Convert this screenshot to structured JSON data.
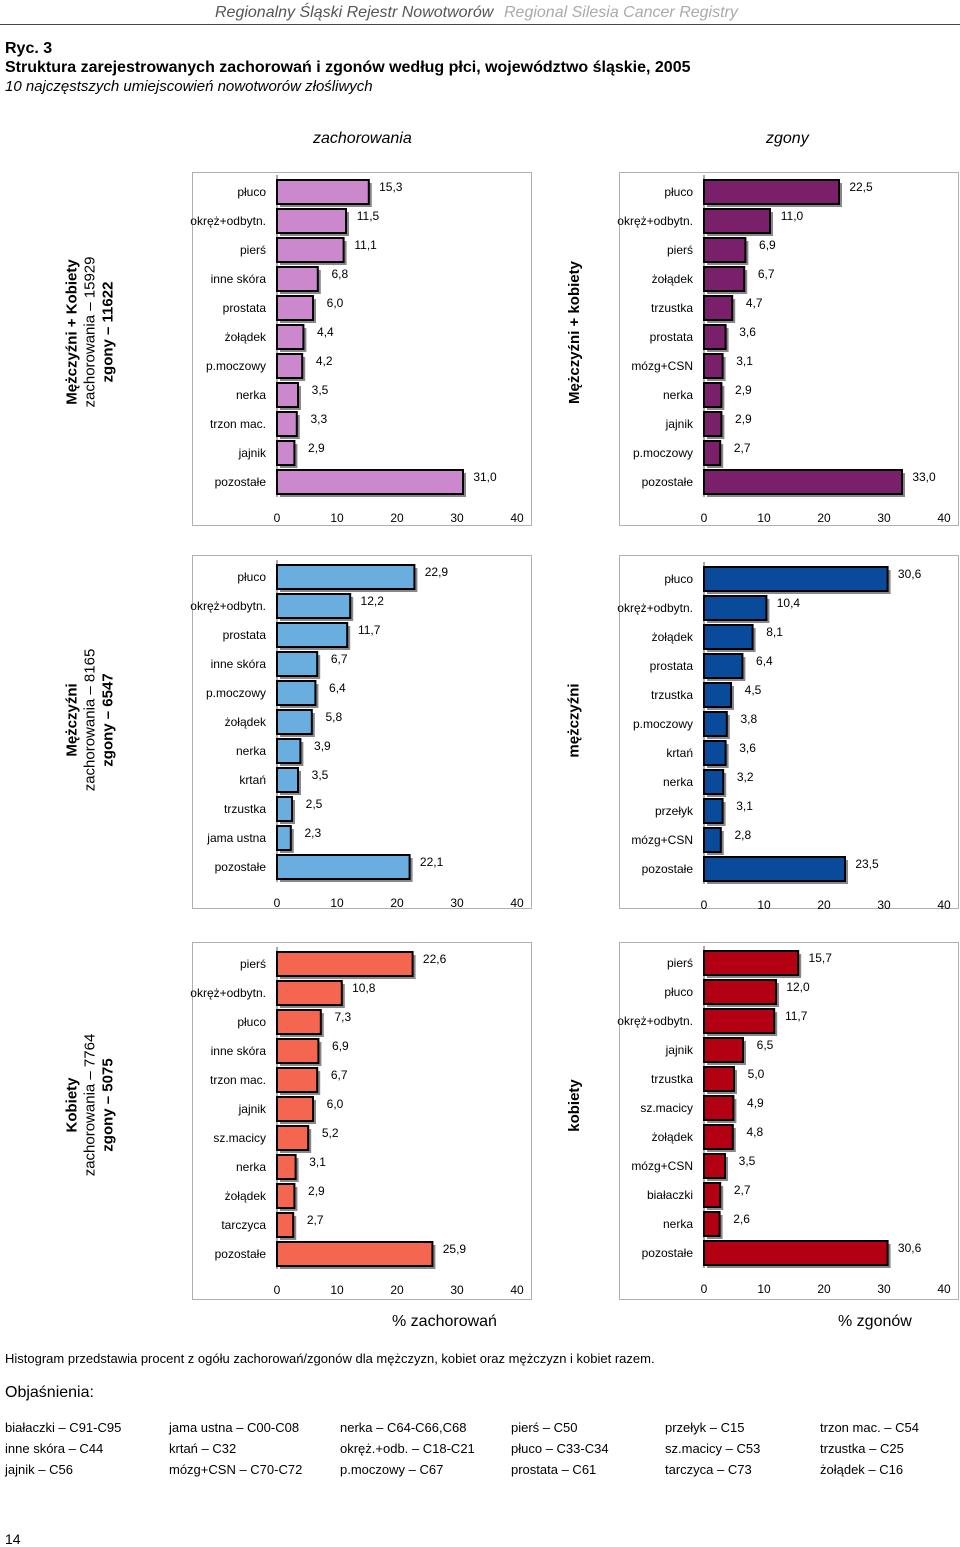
{
  "header": {
    "title_pl": "Regionalny Śląski Rejestr Nowotworów",
    "title_en": "Regional Silesia Cancer Registry"
  },
  "figure": {
    "label": "Ryc. 3",
    "title": "Struktura zarejestrowanych zachorowań i zgonów według płci, województwo śląskie, 2005",
    "subtitle": "10 najczęstszych umiejscowień nowotworów złośliwych"
  },
  "columns": {
    "incidence": "zachorowania",
    "deaths": "zgony"
  },
  "rows": [
    {
      "line1": "Mężczyźni + Kobiety",
      "line2": "zachorowania – 15929",
      "line3": "zgony – 11622",
      "side": "Mężczyźni + kobiety"
    },
    {
      "line1": "Mężczyźni",
      "line2": "zachorowania – 8165",
      "line3": "zgony – 6547",
      "side": "mężczyźni"
    },
    {
      "line1": "Kobiety",
      "line2": "zachorowania – 7764",
      "line3": "zgony – 5075",
      "side": "kobiety"
    }
  ],
  "colors": {
    "both_inc": "#cc88cc",
    "both_mort": "#7a1f6a",
    "men_inc": "#6aaee0",
    "men_mort": "#0a4a9a",
    "women_inc": "#f56650",
    "women_mort": "#b30012"
  },
  "chart_data": [
    {
      "type": "bar",
      "orientation": "horizontal",
      "group": "Mężczyźni + Kobiety",
      "measure": "zachorowania",
      "categories": [
        "płuco",
        "okręż+odbytn.",
        "pierś",
        "inne skóra",
        "prostata",
        "żołądek",
        "p.moczowy",
        "nerka",
        "trzon mac.",
        "jajnik",
        "pozostałe"
      ],
      "values": [
        15.3,
        11.5,
        11.1,
        6.8,
        6.0,
        4.4,
        4.2,
        3.5,
        3.3,
        2.9,
        31.0
      ],
      "labels": [
        "15,3",
        "11,5",
        "11,1",
        "6,8",
        "6,0",
        "4,4",
        "4,2",
        "3,5",
        "3,3",
        "2,9",
        "31,0"
      ],
      "xlim": [
        0,
        40
      ],
      "xticks": [
        "0",
        "10",
        "20",
        "30",
        "40"
      ],
      "xlabel": "% zachorowań"
    },
    {
      "type": "bar",
      "orientation": "horizontal",
      "group": "Mężczyźni + kobiety",
      "measure": "zgony",
      "categories": [
        "płuco",
        "okręż+odbytn.",
        "pierś",
        "żołądek",
        "trzustka",
        "prostata",
        "mózg+CSN",
        "nerka",
        "jajnik",
        "p.moczowy",
        "pozostałe"
      ],
      "values": [
        22.5,
        11.0,
        6.9,
        6.7,
        4.7,
        3.6,
        3.1,
        2.9,
        2.9,
        2.7,
        33.0
      ],
      "labels": [
        "22,5",
        "11,0",
        "6,9",
        "6,7",
        "4,7",
        "3,6",
        "3,1",
        "2,9",
        "2,9",
        "2,7",
        "33,0"
      ],
      "xlim": [
        0,
        40
      ],
      "xticks": [
        "0",
        "10",
        "20",
        "30",
        "40"
      ],
      "xlabel": "% zgonów"
    },
    {
      "type": "bar",
      "orientation": "horizontal",
      "group": "Mężczyźni",
      "measure": "zachorowania",
      "categories": [
        "płuco",
        "okręż+odbytn.",
        "prostata",
        "inne skóra",
        "p.moczowy",
        "żołądek",
        "nerka",
        "krtań",
        "trzustka",
        "jama ustna",
        "pozostałe"
      ],
      "values": [
        22.9,
        12.2,
        11.7,
        6.7,
        6.4,
        5.8,
        3.9,
        3.5,
        2.5,
        2.3,
        22.1
      ],
      "labels": [
        "22,9",
        "12,2",
        "11,7",
        "6,7",
        "6,4",
        "5,8",
        "3,9",
        "3,5",
        "2,5",
        "2,3",
        "22,1"
      ],
      "xlim": [
        0,
        40
      ],
      "xticks": [
        "0",
        "10",
        "20",
        "30",
        "40"
      ],
      "xlabel": "% zachorowań"
    },
    {
      "type": "bar",
      "orientation": "horizontal",
      "group": "mężczyźni",
      "measure": "zgony",
      "categories": [
        "płuco",
        "okręż+odbytn.",
        "żołądek",
        "prostata",
        "trzustka",
        "p.moczowy",
        "krtań",
        "nerka",
        "przełyk",
        "mózg+CSN",
        "pozostałe"
      ],
      "values": [
        30.6,
        10.4,
        8.1,
        6.4,
        4.5,
        3.8,
        3.6,
        3.2,
        3.1,
        2.8,
        23.5
      ],
      "labels": [
        "30,6",
        "10,4",
        "8,1",
        "6,4",
        "4,5",
        "3,8",
        "3,6",
        "3,2",
        "3,1",
        "2,8",
        "23,5"
      ],
      "xlim": [
        0,
        40
      ],
      "xticks": [
        "0",
        "10",
        "20",
        "30",
        "40"
      ],
      "xlabel": "% zgonów"
    },
    {
      "type": "bar",
      "orientation": "horizontal",
      "group": "Kobiety",
      "measure": "zachorowania",
      "categories": [
        "pierś",
        "okręż+odbytn.",
        "płuco",
        "inne skóra",
        "trzon mac.",
        "jajnik",
        "sz.macicy",
        "nerka",
        "żołądek",
        "tarczyca",
        "pozostałe"
      ],
      "values": [
        22.6,
        10.8,
        7.3,
        6.9,
        6.7,
        6.0,
        5.2,
        3.1,
        2.9,
        2.7,
        25.9
      ],
      "labels": [
        "22,6",
        "10,8",
        "7,3",
        "6,9",
        "6,7",
        "6,0",
        "5,2",
        "3,1",
        "2,9",
        "2,7",
        "25,9"
      ],
      "xlim": [
        0,
        40
      ],
      "xticks": [
        "0",
        "10",
        "20",
        "30",
        "40"
      ],
      "xlabel": "% zachorowań"
    },
    {
      "type": "bar",
      "orientation": "horizontal",
      "group": "kobiety",
      "measure": "zgony",
      "categories": [
        "pierś",
        "płuco",
        "okręż+odbytn.",
        "jajnik",
        "trzustka",
        "sz.macicy",
        "żołądek",
        "mózg+CSN",
        "białaczki",
        "nerka",
        "pozostałe"
      ],
      "values": [
        15.7,
        12.0,
        11.7,
        6.5,
        5.0,
        4.9,
        4.8,
        3.5,
        2.7,
        2.6,
        30.6
      ],
      "labels": [
        "15,7",
        "12,0",
        "11,7",
        "6,5",
        "5,0",
        "4,9",
        "4,8",
        "3,5",
        "2,7",
        "2,6",
        "30,6"
      ],
      "xlim": [
        0,
        40
      ],
      "xticks": [
        "0",
        "10",
        "20",
        "30",
        "40"
      ],
      "xlabel": "% zgonów"
    }
  ],
  "axis_titles": {
    "left": "% zachorowań",
    "right": "% zgonów"
  },
  "note": "Histogram przedstawia procent z ogółu zachorowań/zgonów dla mężczyzn, kobiet oraz mężczyzn i kobiet razem.",
  "explanations_title": "Objaśnienia:",
  "legend": [
    [
      "białaczki – C91-C95",
      "jama ustna – C00-C08",
      "nerka – C64-C66,C68",
      "pierś – C50",
      "przełyk – C15",
      "trzon mac. – C54"
    ],
    [
      "inne skóra – C44",
      "krtań – C32",
      "okręż.+odb. – C18-C21",
      "płuco – C33-C34",
      "sz.macicy – C53",
      "trzustka – C25"
    ],
    [
      "jajnik – C56",
      "mózg+CSN – C70-C72",
      "p.moczowy – C67",
      "prostata – C61",
      "tarczyca – C73",
      "żołądek – C16"
    ]
  ],
  "page_number": "14"
}
